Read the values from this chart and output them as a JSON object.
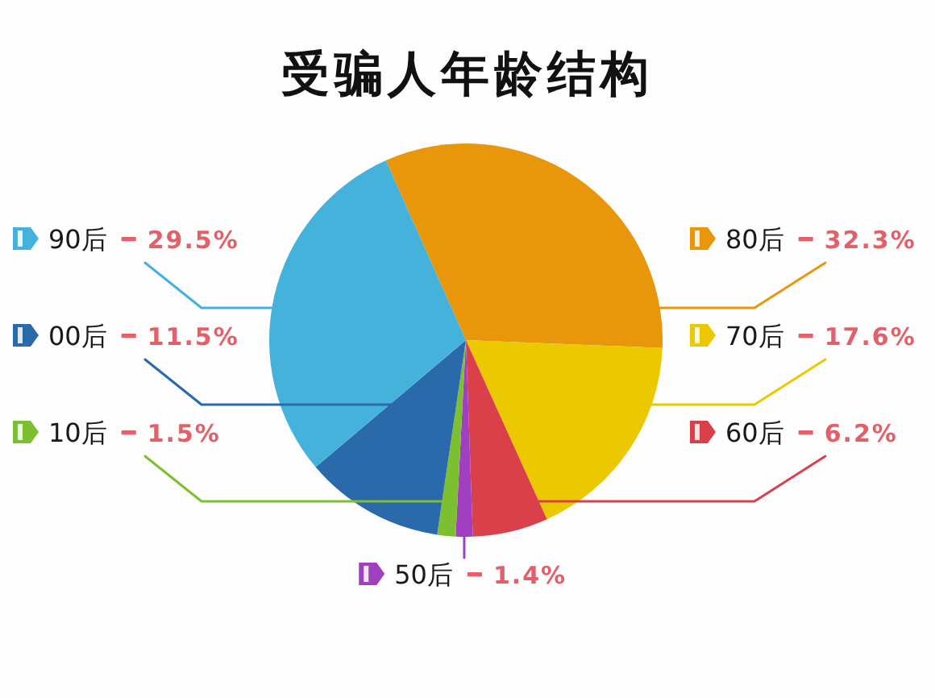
{
  "chart_data": {
    "type": "pie",
    "title": "受骗人年龄结构",
    "categories": [
      "80后",
      "70后",
      "60后",
      "50后",
      "10后",
      "00后",
      "90后"
    ],
    "values": [
      32.3,
      17.6,
      6.2,
      1.4,
      1.5,
      11.5,
      29.5
    ],
    "colors": [
      "#e8960a",
      "#ecc800",
      "#d9404a",
      "#a040c0",
      "#7cc030",
      "#2a6aaa",
      "#45b2dc"
    ],
    "value_labels": [
      "32.3%",
      "17.6%",
      "6.2%",
      "1.4%",
      "1.5%",
      "11.5%",
      "29.5%"
    ],
    "legend": "left"
  }
}
